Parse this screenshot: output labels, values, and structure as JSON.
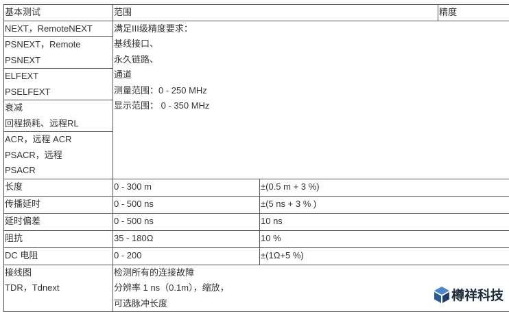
{
  "header": {
    "col1": "基本测试",
    "col2": "范围",
    "col3": "精度"
  },
  "crosstalk_rows": [
    {
      "lines": [
        "NEXT，RemoteNEXT"
      ]
    },
    {
      "lines": [
        "PSNEXT，Remote",
        "PSNEXT"
      ]
    },
    {
      "lines": [
        "ELFEXT",
        "PSELFEXT"
      ]
    },
    {
      "lines": [
        "衰减",
        "回程损耗、远程RL"
      ]
    },
    {
      "lines": [
        "ACR，远程 ACR",
        "PSACR，远程",
        "PSACR"
      ]
    }
  ],
  "crosstalk_range": [
    "满足III级精度要求：",
    "基线接口、",
    "永久链路、",
    "通道",
    "测量范围：0 - 250 MHz",
    "显示范围： 0 - 350 MHz"
  ],
  "rows": [
    {
      "test": "长度",
      "range": "0 - 300 m",
      "accuracy": "±(0.5 m + 3 %)"
    },
    {
      "test": "传播延时",
      "range": "0 - 500 ns",
      "accuracy": "±(5 ns + 3 % )"
    },
    {
      "test": "延时偏差",
      "range": "0 - 500 ns",
      "accuracy": "10 ns"
    },
    {
      "test": "阻抗",
      "range": "35 - 180Ω",
      "accuracy": "10 %"
    },
    {
      "test": "DC 电阻",
      "range": "0 - 200",
      "accuracy": "±(1Ω+5 %)"
    }
  ],
  "last_row": {
    "test": [
      "接线图",
      "TDR，Tdnext"
    ],
    "range": [
      "检测所有的连接故障",
      "分辨率 1 ns（0.1m），缩放，",
      "可选脉冲长度"
    ]
  },
  "watermark": {
    "text": "樽祥科技",
    "color": "#3a6fb0"
  }
}
